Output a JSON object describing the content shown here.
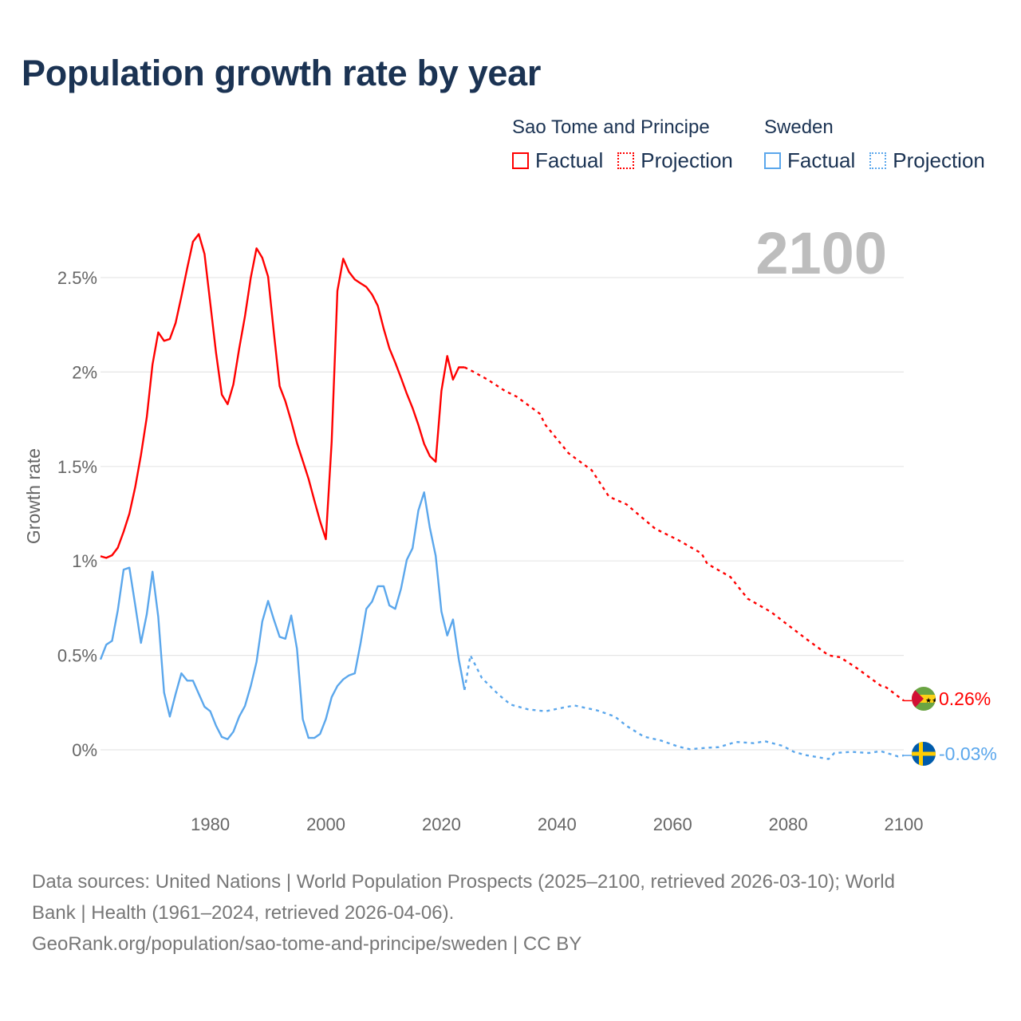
{
  "title": "Population growth rate by year",
  "legend": {
    "groups": [
      {
        "country": "Sao Tome and Principe",
        "factual": "Factual",
        "projection": "Projection",
        "color": "#ff0000"
      },
      {
        "country": "Sweden",
        "factual": "Factual",
        "projection": "Projection",
        "color": "#5ba7ec"
      }
    ]
  },
  "footer": {
    "line1": "Data sources: United Nations | World Population Prospects (2025–2100, retrieved 2026-03-10); World",
    "line2": "Bank | Health (1961–2024, retrieved 2026-04-06).",
    "line3": "GeoRank.org/population/sao-tome-and-principe/sweden | CC BY"
  },
  "chart_data": {
    "type": "line",
    "title": "Population growth rate by year",
    "xlabel": "",
    "ylabel": "Growth rate",
    "xlim": [
      1961,
      2100
    ],
    "ylim": [
      -0.2,
      2.8
    ],
    "x_ticks": [
      1980,
      2000,
      2020,
      2040,
      2060,
      2080,
      2100
    ],
    "x_tick_labels": [
      "1980",
      "2000",
      "2020",
      "2040",
      "2060",
      "2080",
      "2100"
    ],
    "y_ticks": [
      0,
      0.5,
      1,
      1.5,
      2,
      2.5
    ],
    "y_tick_labels": [
      "0%",
      "0.5%",
      "1%",
      "1.5%",
      "2%",
      "2.5%"
    ],
    "grid": true,
    "current_year_label": "2100",
    "series": [
      {
        "name": "Sao Tome and Principe",
        "kind": "Factual",
        "color": "#ff0000",
        "x_start": 1961,
        "values": [
          1.025,
          1.016,
          1.03,
          1.07,
          1.155,
          1.25,
          1.39,
          1.56,
          1.76,
          2.04,
          2.21,
          2.165,
          2.175,
          2.26,
          2.4,
          2.55,
          2.69,
          2.73,
          2.625,
          2.365,
          2.1,
          1.88,
          1.83,
          1.935,
          2.125,
          2.295,
          2.5,
          2.655,
          2.605,
          2.505,
          2.21,
          1.925,
          1.845,
          1.74,
          1.625,
          1.53,
          1.435,
          1.32,
          1.21,
          1.115,
          1.63,
          2.43,
          2.6,
          2.53,
          2.49,
          2.47,
          2.45,
          2.41,
          2.35,
          2.23,
          2.125,
          2.05,
          1.97,
          1.885,
          1.81,
          1.72,
          1.62,
          1.555,
          1.525,
          1.9,
          2.085,
          1.96,
          2.025,
          2.025
        ]
      },
      {
        "name": "Sao Tome and Principe",
        "kind": "Projection",
        "color": "#ff0000",
        "x": [
          2025,
          2028,
          2031,
          2033,
          2037,
          2038,
          2042,
          2046,
          2049,
          2052,
          2057,
          2061,
          2065,
          2066,
          2070,
          2073,
          2077,
          2080,
          2083,
          2087,
          2089,
          2092,
          2096,
          2097,
          2100
        ],
        "values": [
          2.01,
          1.96,
          1.9,
          1.87,
          1.78,
          1.72,
          1.57,
          1.48,
          1.34,
          1.3,
          1.17,
          1.11,
          1.04,
          0.985,
          0.915,
          0.8,
          0.73,
          0.66,
          0.59,
          0.5,
          0.49,
          0.43,
          0.34,
          0.33,
          0.26
        ]
      },
      {
        "name": "Sweden",
        "kind": "Factual",
        "color": "#5ba7ec",
        "x_start": 1961,
        "values": [
          0.478,
          0.556,
          0.577,
          0.739,
          0.954,
          0.964,
          0.767,
          0.566,
          0.718,
          0.943,
          0.704,
          0.303,
          0.176,
          0.296,
          0.405,
          0.366,
          0.366,
          0.296,
          0.228,
          0.204,
          0.127,
          0.068,
          0.056,
          0.096,
          0.176,
          0.232,
          0.338,
          0.465,
          0.679,
          0.788,
          0.69,
          0.598,
          0.588,
          0.711,
          0.535,
          0.162,
          0.063,
          0.063,
          0.084,
          0.162,
          0.279,
          0.338,
          0.373,
          0.394,
          0.405,
          0.563,
          0.746,
          0.785,
          0.866,
          0.866,
          0.764,
          0.746,
          0.852,
          1.006,
          1.067,
          1.267,
          1.363,
          1.175,
          1.027,
          0.732,
          0.605,
          0.69,
          0.478,
          0.317
        ]
      },
      {
        "name": "Sweden",
        "kind": "Projection",
        "color": "#5ba7ec",
        "x": [
          2025,
          2027,
          2030,
          2032,
          2035,
          2038,
          2041,
          2043,
          2047,
          2050,
          2052,
          2055,
          2058,
          2061,
          2063,
          2066,
          2068,
          2071,
          2074,
          2076,
          2079,
          2081,
          2083,
          2087,
          2088,
          2091,
          2094,
          2096,
          2099,
          2100
        ],
        "values": [
          0.5,
          0.38,
          0.289,
          0.239,
          0.214,
          0.204,
          0.223,
          0.235,
          0.208,
          0.176,
          0.127,
          0.07,
          0.049,
          0.017,
          0.003,
          0.011,
          0.014,
          0.042,
          0.035,
          0.045,
          0.021,
          -0.011,
          -0.028,
          -0.049,
          -0.017,
          -0.011,
          -0.017,
          -0.007,
          -0.035,
          -0.03
        ]
      }
    ],
    "end_labels": [
      {
        "country": "Sao Tome and Principe",
        "text": "0.26%",
        "value": 0.26,
        "flag": "sao-tome-flag-icon"
      },
      {
        "country": "Sweden",
        "text": "-0.03%",
        "value": -0.03,
        "flag": "sweden-flag-icon"
      }
    ]
  }
}
